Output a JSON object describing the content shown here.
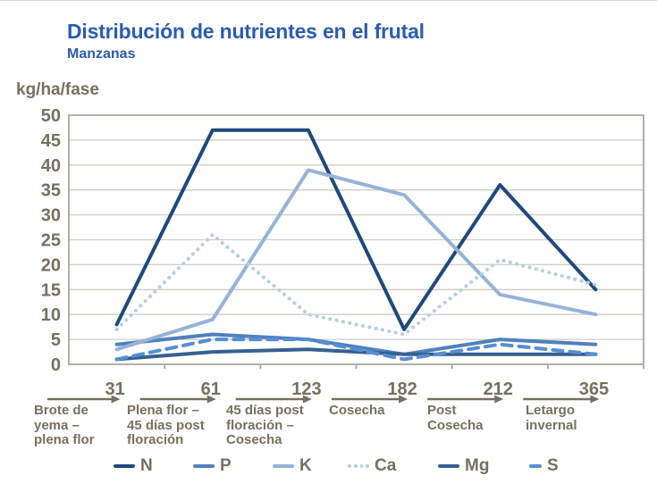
{
  "title": "Distribución de nutrientes en el frutal",
  "subtitle": "Manzanas",
  "y_axis_label": "kg/ha/fase",
  "colors": {
    "title_blue": "#2b5cb0",
    "axis_text": "#77705f",
    "grid": "#d0cdc6",
    "plot_border": "#a6a299"
  },
  "x_axis": {
    "tick_labels": [
      "31",
      "61",
      "123",
      "182",
      "212",
      "365"
    ],
    "phase_labels": [
      "Brote de\nyema –\nplena flor",
      "Plena flor –\n45 días post\nfloración",
      "45 días post\nfloración –\nCosecha",
      "Cosecha",
      "Post\nCosecha",
      "Letargo\ninvernal"
    ]
  },
  "chart_data": {
    "type": "line",
    "title": "Distribución de nutrientes en el frutal",
    "subtitle": "Manzanas",
    "ylabel": "kg/ha/fase",
    "xlabel": "",
    "categories": [
      31,
      61,
      123,
      182,
      212,
      365
    ],
    "category_phases": [
      "Brote de yema – plena flor",
      "Plena flor – 45 días post floración",
      "45 días post floración – Cosecha",
      "Cosecha",
      "Post Cosecha",
      "Letargo invernal"
    ],
    "ylim": [
      0,
      50
    ],
    "ytick_step": 5,
    "grid": true,
    "legend_position": "bottom",
    "series": [
      {
        "name": "N",
        "color": "#1F497D",
        "style": "solid",
        "values": [
          8,
          47,
          47,
          7,
          36,
          15
        ]
      },
      {
        "name": "P",
        "color": "#4F81BD",
        "style": "solid",
        "values": [
          4,
          6,
          5,
          2,
          5,
          4
        ]
      },
      {
        "name": "K",
        "color": "#95B3D7",
        "style": "solid",
        "values": [
          3,
          9,
          39,
          34,
          14,
          10
        ]
      },
      {
        "name": "Ca",
        "color": "#B8CCE4",
        "style": "dotted",
        "values": [
          7,
          26,
          10,
          6,
          21,
          16
        ]
      },
      {
        "name": "Mg",
        "color": "#366092",
        "style": "solid",
        "values": [
          1,
          2.5,
          3,
          2,
          2,
          2
        ]
      },
      {
        "name": "S",
        "color": "#558ED5",
        "style": "dashed",
        "values": [
          1,
          5,
          5,
          1,
          4,
          2
        ]
      }
    ]
  }
}
